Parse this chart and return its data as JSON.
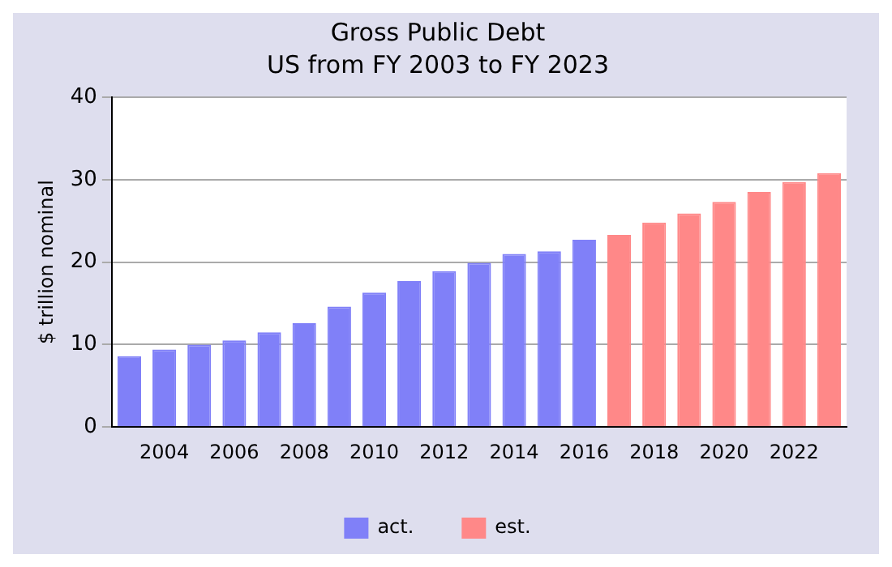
{
  "chart_data": {
    "type": "bar",
    "title": "Gross Public Debt",
    "subtitle": "US from FY 2003 to FY 2023",
    "ylabel": "$ trillion nominal",
    "categories": [
      null,
      "2004",
      null,
      "2006",
      null,
      "2008",
      null,
      "2010",
      null,
      "2012",
      null,
      "2014",
      null,
      "2016",
      null,
      "2018",
      null,
      "2020",
      null,
      "2022",
      null
    ],
    "series": [
      {
        "name": "act.",
        "color": "#8080f8",
        "values": [
          8.6,
          9.4,
          10.0,
          10.5,
          11.5,
          12.6,
          14.6,
          16.3,
          17.7,
          18.9,
          19.9,
          21.0,
          21.3,
          22.7,
          null,
          null,
          null,
          null,
          null,
          null,
          null
        ]
      },
      {
        "name": "est.",
        "color": "#ff8888",
        "values": [
          null,
          null,
          null,
          null,
          null,
          null,
          null,
          null,
          null,
          null,
          null,
          null,
          null,
          null,
          23.3,
          24.8,
          25.9,
          27.3,
          28.5,
          29.7,
          30.8
        ]
      }
    ],
    "ylim": [
      0,
      40
    ],
    "yticks": [
      0,
      10,
      20,
      30,
      40
    ],
    "grid": "y",
    "legend": "bottom"
  }
}
